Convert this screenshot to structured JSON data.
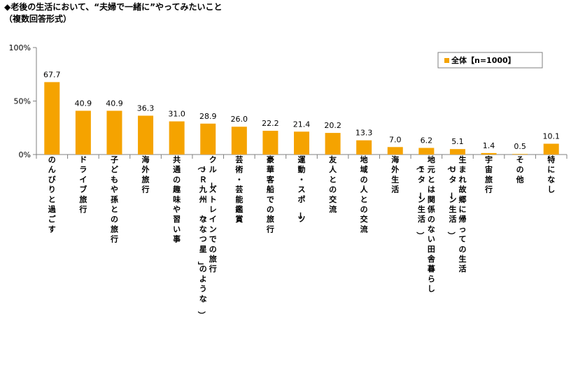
{
  "title": "◆老後の生活において、“夫婦で一緒に”やってみたいこと",
  "subtitle": "（複数回答形式）",
  "colors": {
    "bar": "#F5A300",
    "axis": "#808080",
    "frame": "#7f7f7f"
  },
  "chart_data": {
    "type": "bar",
    "categories": [
      "のんびりと過ごす",
      "ドライブ旅行",
      "子どもや孫との旅行",
      "海外旅行",
      "共通の趣味や習い事",
      "クルーズトレインでの旅行（ＪＲ九州「ななつ星」のような）",
      "芸術・芸能鑑賞",
      "豪華客船での旅行",
      "運動・スポーツ",
      "友人との交流",
      "地域の人との交流",
      "海外生活",
      "地元とは関係のない田舎暮らし（Ｉターン生活）",
      "生まれ故郷に帰っての生活（Ｕターン生活）",
      "宇宙旅行",
      "その他",
      "特になし"
    ],
    "category_columns": [
      [
        "のんびりと過ごす"
      ],
      [
        "ドライブ旅行"
      ],
      [
        "子どもや孫との旅行"
      ],
      [
        "海外旅行"
      ],
      [
        "共通の趣味や習い事"
      ],
      [
        "クルーズトレインでの旅行",
        "（ＪＲ九州「ななつ星」のような）"
      ],
      [
        "芸術・芸能鑑賞"
      ],
      [
        "豪華客船での旅行"
      ],
      [
        "運動・スポーツ"
      ],
      [
        "友人との交流"
      ],
      [
        "地域の人との交流"
      ],
      [
        "海外生活"
      ],
      [
        "地元とは関係のない田舎暮らし",
        "（Ｉターン生活）"
      ],
      [
        "生まれ故郷に帰っての生活",
        "（Ｕターン生活）"
      ],
      [
        "宇宙旅行"
      ],
      [
        "その他"
      ],
      [
        "特になし"
      ]
    ],
    "series": [
      {
        "name": "全体【n=1000】",
        "values": [
          67.7,
          40.9,
          40.9,
          36.3,
          31.0,
          28.9,
          26.0,
          22.2,
          21.4,
          20.2,
          13.3,
          7.0,
          6.2,
          5.1,
          1.4,
          0.5,
          10.1
        ]
      }
    ],
    "value_labels": [
      "67.7",
      "40.9",
      "40.9",
      "36.3",
      "31.0",
      "28.9",
      "26.0",
      "22.2",
      "21.4",
      "20.2",
      "13.3",
      "7.0",
      "6.2",
      "5.1",
      "1.4",
      "0.5",
      "10.1"
    ],
    "ylim": [
      0,
      100
    ],
    "yticks": [
      0,
      50,
      100
    ],
    "ytick_labels": [
      "0%",
      "50%",
      "100%"
    ],
    "legend_position": "top-right",
    "grid": false
  }
}
